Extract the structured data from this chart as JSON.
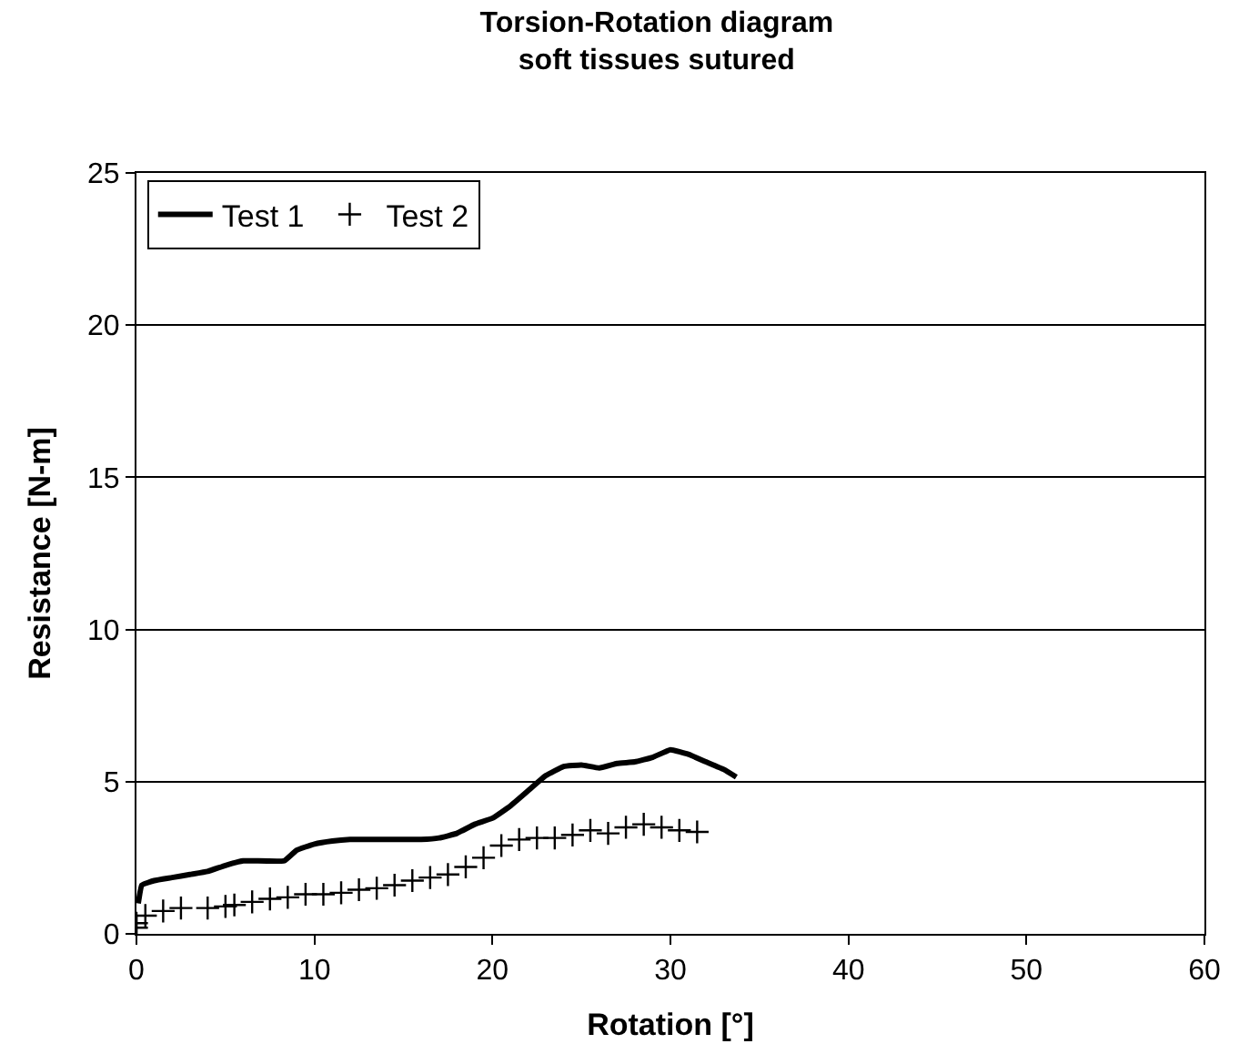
{
  "chart_data": {
    "type": "line",
    "title": "Torsion-Rotation diagram\nsoft tissues sutured",
    "xlabel": "Rotation [°]",
    "ylabel": "Resistance [N-m]",
    "xlim": [
      0,
      60
    ],
    "xticks": [
      0,
      10,
      20,
      30,
      40,
      50,
      60
    ],
    "ylim": [
      0,
      25
    ],
    "yticks": [
      0,
      5,
      10,
      15,
      20,
      25
    ],
    "grid": "y",
    "legend": "top left",
    "series": [
      {
        "name": "Test 1",
        "color": "#000000",
        "marker": "none",
        "x": [
          0.1,
          0.3,
          1,
          2,
          3,
          4,
          5,
          6,
          8.3,
          9,
          10,
          11,
          12,
          16,
          17,
          18,
          19,
          20,
          21,
          22,
          23,
          24,
          25,
          26,
          27,
          28,
          29,
          30,
          31,
          32,
          33,
          33.7
        ],
        "values": [
          1.0,
          1.6,
          1.75,
          1.85,
          1.95,
          2.05,
          2.25,
          2.4,
          2.4,
          2.75,
          2.95,
          3.05,
          3.1,
          3.1,
          3.15,
          3.3,
          3.6,
          3.8,
          4.2,
          4.7,
          5.2,
          5.5,
          5.55,
          5.45,
          5.6,
          5.65,
          5.8,
          6.05,
          5.9,
          5.65,
          5.4,
          5.15
        ]
      },
      {
        "name": "Test 2",
        "color": "#000000",
        "type": "scatter",
        "marker": "cross",
        "x": [
          0,
          0,
          0.5,
          1.5,
          2.5,
          4,
          5,
          5.5,
          6.5,
          7.5,
          8.5,
          9.5,
          10.5,
          11.5,
          12.5,
          13.5,
          14.5,
          15.5,
          16.5,
          17.5,
          18.5,
          19.5,
          20.5,
          21.5,
          22.5,
          23.5,
          24.5,
          25.5,
          26.5,
          27.5,
          28.5,
          29.5,
          30.5,
          31.5
        ],
        "values": [
          0.2,
          0.35,
          0.6,
          0.75,
          0.85,
          0.85,
          0.9,
          0.95,
          1.05,
          1.15,
          1.2,
          1.3,
          1.3,
          1.35,
          1.45,
          1.5,
          1.6,
          1.75,
          1.85,
          1.95,
          2.2,
          2.5,
          2.9,
          3.1,
          3.15,
          3.15,
          3.25,
          3.4,
          3.3,
          3.5,
          3.6,
          3.5,
          3.4,
          3.35
        ]
      }
    ]
  }
}
